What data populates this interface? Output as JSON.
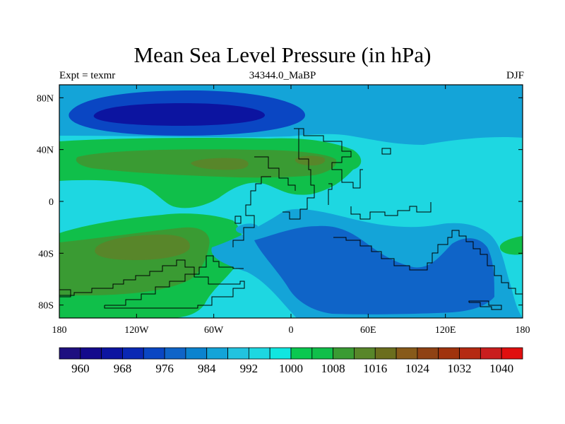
{
  "chart_data": {
    "type": "contour-map",
    "title": "Mean Sea Level Pressure (in hPa)",
    "left_label": "Expt = texmr",
    "center_label": "34344.0_MaBP",
    "right_label": "DJF",
    "xlim": [
      -180,
      180
    ],
    "ylim": [
      -90,
      90
    ],
    "x_ticks": [
      {
        "value": -180,
        "label": "180"
      },
      {
        "value": -120,
        "label": "120W"
      },
      {
        "value": -60,
        "label": "60W"
      },
      {
        "value": 0,
        "label": "0"
      },
      {
        "value": 60,
        "label": "60E"
      },
      {
        "value": 120,
        "label": "120E"
      },
      {
        "value": 180,
        "label": "180"
      }
    ],
    "y_ticks": [
      {
        "value": 80,
        "label": "80N"
      },
      {
        "value": 40,
        "label": "40N"
      },
      {
        "value": 0,
        "label": "0"
      },
      {
        "value": -40,
        "label": "40S"
      },
      {
        "value": -80,
        "label": "80S"
      }
    ],
    "colorbar": {
      "levels": [
        956,
        960,
        964,
        968,
        972,
        976,
        980,
        984,
        988,
        992,
        996,
        1000,
        1004,
        1008,
        1012,
        1016,
        1020,
        1024,
        1028,
        1032,
        1036,
        1040,
        1044
      ],
      "labels": [
        "960",
        "968",
        "976",
        "984",
        "992",
        "1000",
        "1008",
        "1016",
        "1024",
        "1032",
        "1040"
      ],
      "label_values": [
        960,
        968,
        976,
        984,
        992,
        1000,
        1008,
        1016,
        1024,
        1032,
        1040
      ],
      "colors": [
        "#1e0f80",
        "#140a8c",
        "#0c14a0",
        "#0a28b4",
        "#0a46c3",
        "#0f64c8",
        "#0b83cf",
        "#14a4d8",
        "#22c3df",
        "#1ed7e1",
        "#10e6e0",
        "#0ac850",
        "#10bf4a",
        "#3a9b33",
        "#58862a",
        "#6b6e1e",
        "#875a1a",
        "#8f4214",
        "#a0330d",
        "#b52a12",
        "#c91e1e",
        "#e00f0f"
      ]
    },
    "regions": [
      {
        "name": "background-1000",
        "level": 1000,
        "color": "#1ed7e1"
      },
      {
        "name": "arctic-band-992",
        "level": 992,
        "color": "#14a4d8"
      },
      {
        "name": "arctic-low-984",
        "level": 984,
        "color": "#0a46c3"
      },
      {
        "name": "arctic-low-976",
        "level": 976,
        "color": "#0c14a0"
      },
      {
        "name": "nh-high-belt-1004",
        "level": 1004,
        "color": "#10bf4a"
      },
      {
        "name": "nh-high-1008",
        "level": 1008,
        "color": "#3a9b33"
      },
      {
        "name": "nh-high-1012-west",
        "level": 1012,
        "color": "#58862a"
      },
      {
        "name": "nh-high-1012-east",
        "level": 1012,
        "color": "#58862a"
      },
      {
        "name": "sh-high-belt-1004",
        "level": 1004,
        "color": "#10bf4a"
      },
      {
        "name": "sh-high-1008",
        "level": 1008,
        "color": "#3a9b33"
      },
      {
        "name": "sh-high-1012",
        "level": 1012,
        "color": "#58862a"
      },
      {
        "name": "sh-high-east-1004",
        "level": 1004,
        "color": "#10bf4a"
      },
      {
        "name": "antarctic-trough-996",
        "level": 996,
        "color": "#14a4d8"
      },
      {
        "name": "antarctic-low-988",
        "level": 988,
        "color": "#0f64c8"
      },
      {
        "name": "east-equatorial-patch-992",
        "level": 992,
        "color": "#14a4d8"
      }
    ]
  }
}
